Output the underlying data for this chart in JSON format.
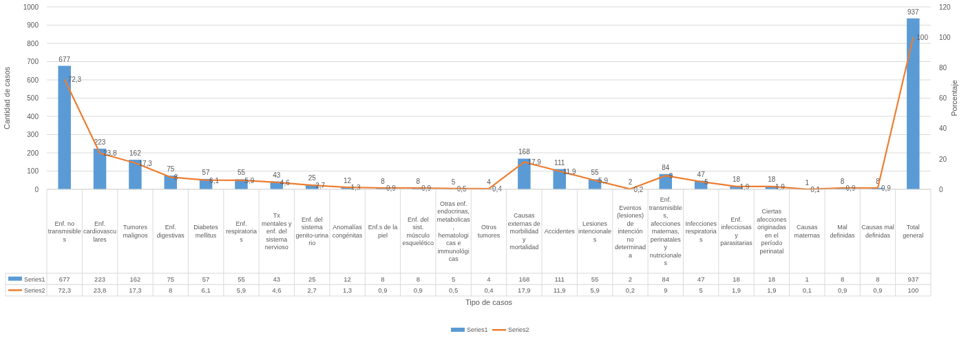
{
  "chart_data": {
    "type": "bar",
    "xlabel": "Tipo de casos",
    "ylabel": "Cantidad de casos",
    "y2label": "Porcentaje",
    "categories": [
      "Enf. no transmisibles",
      "Enf. cardiovasculares",
      "Tumores malignos",
      "Enf. digestivas",
      "Diabetes mellitus",
      "Enf. respiratorias",
      "Tx mentales y enf. del sistema nervioso",
      "Enf. del sistema genito-urinario",
      "Anomalías congénitas",
      "Enf.s de la piel",
      "Enf. del sist. músculo esquelético",
      "Otras enf. endocrinas, metabolicas, hematologicas e immunológicas",
      "Otros tumores",
      "Causas externas de morbilidad y mortalidad",
      "Accidentes",
      "Lesiones intencionales",
      "Eventos (lesiones) de intención no determinada",
      "Enf. transmisibles, afecciones maternas, perinatales y nutricionales",
      "Infecciones respiratorias",
      "Enf. infecciosas y parasitarias",
      "Ciertas afecciones originadas en el período perinatal",
      "Causas maternas",
      "Mal definidas",
      "Causas mal definidas",
      "Total general"
    ],
    "series": [
      {
        "name": "Series1",
        "color": "#5b9bd5",
        "values": [
          677,
          223,
          162,
          75,
          57,
          55,
          43,
          25,
          12,
          8,
          8,
          5,
          4,
          168,
          111,
          55,
          2,
          84,
          47,
          18,
          18,
          1,
          8,
          8,
          937
        ],
        "value_labels": [
          "677",
          "223",
          "162",
          "75",
          "57",
          "55",
          "43",
          "25",
          "12",
          "8",
          "8",
          "5",
          "4",
          "168",
          "111",
          "55",
          "2",
          "84",
          "47",
          "18",
          "18",
          "1",
          "8",
          "8",
          "937"
        ]
      },
      {
        "name": "Series2",
        "type": "line",
        "axis": "y2",
        "color": "#ed7d31",
        "values": [
          72.3,
          23.8,
          17.3,
          8,
          6.1,
          5.9,
          4.6,
          2.7,
          1.3,
          0.9,
          0.9,
          0.5,
          0.4,
          17.9,
          11.9,
          5.9,
          0.2,
          9,
          5,
          1.9,
          1.9,
          0.1,
          0.9,
          0.9,
          100
        ],
        "value_labels": [
          "72,3",
          "23,8",
          "17,3",
          "8",
          "6,1",
          "5,9",
          "4,6",
          "2,7",
          "1,3",
          "0,9",
          "0,9",
          "0,5",
          "0,4",
          "17,9",
          "11,9",
          "5,9",
          "0,2",
          "9",
          "5",
          "1,9",
          "1,9",
          "0,1",
          "0,9",
          "0,9",
          "100"
        ]
      }
    ],
    "ylim": [
      0,
      1000
    ],
    "yticks": [
      0,
      100,
      200,
      300,
      400,
      500,
      600,
      700,
      800,
      900,
      1000
    ],
    "y2lim": [
      0,
      120
    ],
    "y2ticks": [
      0,
      20,
      40,
      60,
      80,
      100,
      120
    ],
    "grid": "y",
    "legend": "bottom",
    "marker": "none",
    "line_style": "solid"
  }
}
